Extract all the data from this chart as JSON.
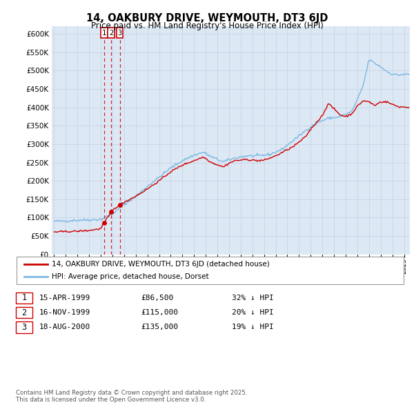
{
  "title": "14, OAKBURY DRIVE, WEYMOUTH, DT3 6JD",
  "subtitle": "Price paid vs. HM Land Registry's House Price Index (HPI)",
  "hpi_label": "HPI: Average price, detached house, Dorset",
  "house_label": "14, OAKBURY DRIVE, WEYMOUTH, DT3 6JD (detached house)",
  "hpi_color": "#7ab8e0",
  "house_color": "#cc0000",
  "vline_color": "#cc0000",
  "bg_color": "#dde8f5",
  "grid_color": "#c8d4e4",
  "ylim": [
    0,
    620000
  ],
  "yticks": [
    0,
    50000,
    100000,
    150000,
    200000,
    250000,
    300000,
    350000,
    400000,
    450000,
    500000,
    550000,
    600000
  ],
  "sale_dates": [
    1999.29,
    1999.88,
    2000.63
  ],
  "sale_prices": [
    86500,
    115000,
    135000
  ],
  "sale_labels": [
    "1",
    "2",
    "3"
  ],
  "transactions": [
    {
      "label": "1",
      "date": "15-APR-1999",
      "price": "£86,500",
      "hpi_pct": "32% ↓ HPI"
    },
    {
      "label": "2",
      "date": "16-NOV-1999",
      "price": "£115,000",
      "hpi_pct": "20% ↓ HPI"
    },
    {
      "label": "3",
      "date": "18-AUG-2000",
      "price": "£135,000",
      "hpi_pct": "19% ↓ HPI"
    }
  ],
  "copyright_text": "Contains HM Land Registry data © Crown copyright and database right 2025.\nThis data is licensed under the Open Government Licence v3.0.",
  "xmin": 1994.8,
  "xmax": 2025.5,
  "hpi_anchors_x": [
    1995.0,
    1996.0,
    1997.0,
    1998.0,
    1999.0,
    2000.0,
    2001.0,
    2002.0,
    2003.0,
    2004.0,
    2005.0,
    2006.0,
    2007.0,
    2007.8,
    2008.5,
    2009.5,
    2010.5,
    2011.5,
    2012.5,
    2013.5,
    2014.5,
    2015.5,
    2016.5,
    2017.5,
    2018.5,
    2019.5,
    2020.5,
    2021.0,
    2021.5,
    2022.0,
    2022.5,
    2023.0,
    2023.5,
    2024.0,
    2024.5,
    2025.3
  ],
  "hpi_anchors_y": [
    90000,
    91000,
    93000,
    94000,
    95000,
    110000,
    135000,
    158000,
    185000,
    210000,
    235000,
    255000,
    270000,
    278000,
    265000,
    252000,
    262000,
    268000,
    268000,
    272000,
    285000,
    310000,
    335000,
    358000,
    370000,
    374000,
    388000,
    420000,
    460000,
    530000,
    520000,
    510000,
    498000,
    490000,
    488000,
    490000
  ],
  "house_anchors_x": [
    1995.0,
    1996.0,
    1997.0,
    1998.0,
    1999.0,
    1999.29,
    1999.6,
    1999.88,
    2000.3,
    2000.63,
    2001.0,
    2002.0,
    2003.0,
    2004.0,
    2005.0,
    2006.0,
    2007.0,
    2007.8,
    2008.5,
    2009.5,
    2010.0,
    2010.5,
    2011.5,
    2012.5,
    2013.0,
    2014.0,
    2015.5,
    2016.5,
    2017.0,
    2018.0,
    2018.5,
    2019.0,
    2019.5,
    2020.0,
    2020.5,
    2021.0,
    2021.5,
    2022.0,
    2022.5,
    2023.0,
    2023.5,
    2024.0,
    2024.5,
    2025.3
  ],
  "house_anchors_y": [
    61000,
    62000,
    63000,
    65000,
    70000,
    86500,
    100000,
    115000,
    128000,
    135000,
    142000,
    158000,
    178000,
    200000,
    225000,
    243000,
    255000,
    265000,
    250000,
    238000,
    248000,
    255000,
    258000,
    255000,
    256000,
    268000,
    293000,
    318000,
    340000,
    378000,
    410000,
    396000,
    380000,
    375000,
    382000,
    403000,
    418000,
    415000,
    405000,
    415000,
    415000,
    408000,
    402000,
    400000
  ]
}
